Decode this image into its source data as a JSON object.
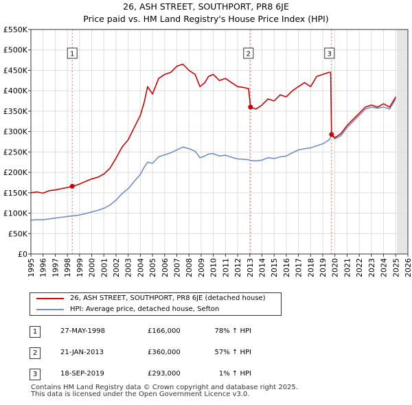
{
  "title": {
    "line1": "26, ASH STREET, SOUTHPORT, PR8 6JE",
    "line2": "Price paid vs. HM Land Registry's House Price Index (HPI)"
  },
  "colors": {
    "property": "#cc0000",
    "hpi": "#6b8fc4",
    "marker_line": "#cc0000",
    "future_shade": "#e6e6e6"
  },
  "chart_data": {
    "type": "line",
    "title": "Price paid vs. HM Land Registry's House Price Index (HPI)",
    "xlabel": "",
    "ylabel": "",
    "xlim": [
      1995.0,
      2026.0
    ],
    "ylim": [
      0,
      550000
    ],
    "grid": true,
    "y_ticks": [
      {
        "value": 0,
        "label": "£0"
      },
      {
        "value": 50000,
        "label": "£50K"
      },
      {
        "value": 100000,
        "label": "£100K"
      },
      {
        "value": 150000,
        "label": "£150K"
      },
      {
        "value": 200000,
        "label": "£200K"
      },
      {
        "value": 250000,
        "label": "£250K"
      },
      {
        "value": 300000,
        "label": "£300K"
      },
      {
        "value": 350000,
        "label": "£350K"
      },
      {
        "value": 400000,
        "label": "£400K"
      },
      {
        "value": 450000,
        "label": "£450K"
      },
      {
        "value": 500000,
        "label": "£500K"
      },
      {
        "value": 550000,
        "label": "£550K"
      }
    ],
    "x_ticks": [
      "1995",
      "1996",
      "1997",
      "1998",
      "1999",
      "2000",
      "2001",
      "2002",
      "2003",
      "2004",
      "2005",
      "2006",
      "2007",
      "2008",
      "2009",
      "2010",
      "2011",
      "2012",
      "2013",
      "2014",
      "2015",
      "2016",
      "2017",
      "2018",
      "2019",
      "2020",
      "2021",
      "2022",
      "2023",
      "2024",
      "2025",
      "2026"
    ],
    "shaded_from": 2025.1,
    "series": [
      {
        "name": "26, ASH STREET, SOUTHPORT, PR8 6JE (detached house)",
        "color": "#cc0000",
        "x": [
          1995.0,
          1995.5,
          1996.0,
          1996.5,
          1997.0,
          1997.5,
          1998.0,
          1998.4,
          1998.9,
          1999.5,
          2000.0,
          2000.5,
          2001.0,
          2001.5,
          2002.0,
          2002.5,
          2003.0,
          2003.5,
          2004.0,
          2004.3,
          2004.6,
          2005.0,
          2005.5,
          2006.0,
          2006.5,
          2007.0,
          2007.5,
          2008.0,
          2008.5,
          2008.9,
          2009.3,
          2009.6,
          2010.0,
          2010.5,
          2011.0,
          2011.5,
          2012.0,
          2012.5,
          2012.9,
          2013.06,
          2013.5,
          2014.0,
          2014.5,
          2015.0,
          2015.5,
          2016.0,
          2016.5,
          2017.0,
          2017.5,
          2018.0,
          2018.5,
          2019.0,
          2019.5,
          2019.65,
          2019.72,
          2020.0,
          2020.5,
          2021.0,
          2021.5,
          2022.0,
          2022.5,
          2023.0,
          2023.5,
          2024.0,
          2024.5,
          2025.0
        ],
        "values": [
          150000,
          152000,
          149000,
          155000,
          157000,
          160000,
          163000,
          166000,
          170000,
          178000,
          184000,
          188000,
          196000,
          210000,
          235000,
          262000,
          280000,
          310000,
          340000,
          370000,
          410000,
          392000,
          430000,
          440000,
          445000,
          460000,
          465000,
          450000,
          440000,
          410000,
          420000,
          435000,
          440000,
          425000,
          430000,
          420000,
          410000,
          408000,
          405000,
          360000,
          355000,
          365000,
          380000,
          375000,
          390000,
          385000,
          400000,
          410000,
          420000,
          410000,
          435000,
          440000,
          445000,
          445000,
          293000,
          285000,
          295000,
          315000,
          330000,
          345000,
          360000,
          365000,
          360000,
          368000,
          360000,
          385000
        ]
      },
      {
        "name": "HPI: Average price, detached house, Sefton",
        "color": "#6b8fc4",
        "x": [
          1995.0,
          1995.5,
          1996.0,
          1996.5,
          1997.0,
          1997.5,
          1998.0,
          1998.4,
          1998.9,
          1999.5,
          2000.0,
          2000.5,
          2001.0,
          2001.5,
          2002.0,
          2002.5,
          2003.0,
          2003.5,
          2004.0,
          2004.3,
          2004.6,
          2005.0,
          2005.5,
          2006.0,
          2006.5,
          2007.0,
          2007.5,
          2008.0,
          2008.5,
          2008.9,
          2009.3,
          2009.6,
          2010.0,
          2010.5,
          2011.0,
          2011.5,
          2012.0,
          2012.5,
          2012.9,
          2013.06,
          2013.5,
          2014.0,
          2014.5,
          2015.0,
          2015.5,
          2016.0,
          2016.5,
          2017.0,
          2017.5,
          2018.0,
          2018.5,
          2019.0,
          2019.5,
          2019.65,
          2019.72,
          2020.0,
          2020.5,
          2021.0,
          2021.5,
          2022.0,
          2022.5,
          2023.0,
          2023.5,
          2024.0,
          2024.5,
          2025.0
        ],
        "values": [
          83000,
          84000,
          84000,
          86000,
          88000,
          90000,
          92000,
          93000,
          95000,
          99000,
          103000,
          107000,
          112000,
          120000,
          132000,
          148000,
          160000,
          178000,
          195000,
          212000,
          225000,
          222000,
          238000,
          243000,
          248000,
          255000,
          262000,
          258000,
          252000,
          236000,
          240000,
          245000,
          246000,
          240000,
          242000,
          237000,
          233000,
          232000,
          231000,
          229000,
          228000,
          230000,
          236000,
          234000,
          238000,
          240000,
          248000,
          255000,
          258000,
          260000,
          265000,
          270000,
          279000,
          286000,
          290000,
          282000,
          290000,
          310000,
          325000,
          340000,
          355000,
          360000,
          357000,
          360000,
          355000,
          380000
        ]
      }
    ],
    "annotations": [
      {
        "label": "1",
        "x": 1998.4,
        "value": 166000
      },
      {
        "label": "2",
        "x": 2013.06,
        "value": 360000
      },
      {
        "label": "3",
        "x": 2019.72,
        "value": 293000
      }
    ]
  },
  "legend": {
    "property_label": "26, ASH STREET, SOUTHPORT, PR8 6JE (detached house)",
    "hpi_label": "HPI: Average price, detached house, Sefton"
  },
  "transactions": [
    {
      "marker": "1",
      "date": "27-MAY-1998",
      "price": "£166,000",
      "hpi": "78% ↑ HPI"
    },
    {
      "marker": "2",
      "date": "21-JAN-2013",
      "price": "£360,000",
      "hpi": "57% ↑ HPI"
    },
    {
      "marker": "3",
      "date": "18-SEP-2019",
      "price": "£293,000",
      "hpi": "1% ↑ HPI"
    }
  ],
  "footer": {
    "line1": "Contains HM Land Registry data © Crown copyright and database right 2025.",
    "line2": "This data is licensed under the Open Government Licence v3.0."
  }
}
